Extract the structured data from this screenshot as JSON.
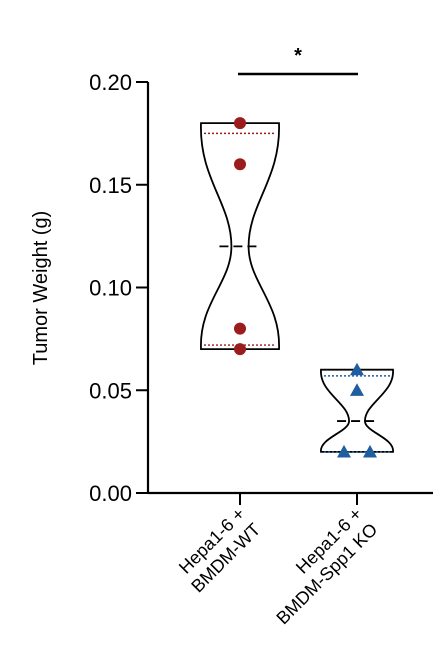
{
  "chart_data": {
    "type": "violin",
    "ylabel": "Tumor Weight (g)",
    "xlabel": "",
    "ylim": [
      0.0,
      0.2
    ],
    "yticks": [
      "0.00",
      "0.05",
      "0.10",
      "0.15",
      "0.20"
    ],
    "ytick_values": [
      0.0,
      0.05,
      0.1,
      0.15,
      0.2
    ],
    "grid": false,
    "groups": [
      {
        "label_line1": "Hepa1-6 +",
        "label_line2": "BMDM-WT",
        "color": "#9b1c1c",
        "marker": "circle",
        "points": [
          0.18,
          0.16,
          0.08,
          0.07
        ],
        "min": 0.07,
        "max": 0.18,
        "median": 0.12,
        "q1": 0.072,
        "q3": 0.175
      },
      {
        "label_line1": "Hepa1-6 +",
        "label_line2": "BMDM-Spp1 KO",
        "color": "#1f5fa0",
        "marker": "triangle",
        "points": [
          0.06,
          0.05,
          0.02,
          0.02
        ],
        "min": 0.02,
        "max": 0.06,
        "median": 0.035,
        "q1": 0.02,
        "q3": 0.057
      }
    ],
    "significance": {
      "text": "*",
      "between": [
        0,
        1
      ]
    }
  }
}
